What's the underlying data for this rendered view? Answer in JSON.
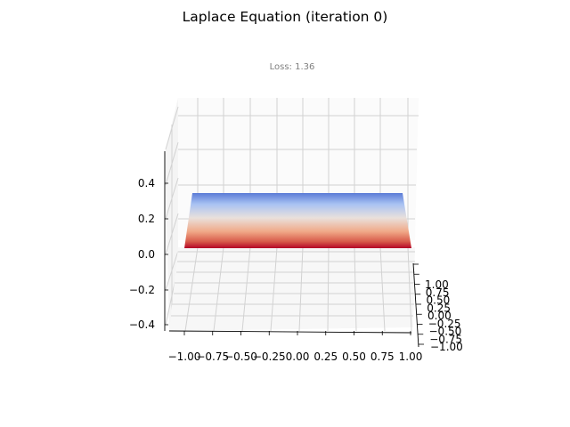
{
  "chart_data": {
    "type": "surface",
    "title": "Laplace Equation (iteration 0)",
    "subtitle": "Loss: 1.36",
    "x_ticks": [
      "−1.00",
      "−0.75",
      "−0.50",
      "−0.25",
      "0.00",
      "0.25",
      "0.50",
      "0.75",
      "1.00"
    ],
    "y_ticks": [
      "−1.00",
      "−0.75",
      "−0.50",
      "−0.25",
      "0.00",
      "0.25",
      "0.50",
      "0.75",
      "1.00"
    ],
    "z_ticks": [
      "−0.4",
      "−0.2",
      "0.0",
      "0.2",
      "0.4"
    ],
    "xlim": [
      -1,
      1
    ],
    "ylim": [
      -1,
      1
    ],
    "zlim": [
      -0.5,
      0.5
    ],
    "surface": {
      "description_values": "near-flat surface at u ≈ 0 across the domain",
      "z_value": 0.0,
      "colormap": "coolwarm",
      "colors": {
        "low": "#b40426",
        "mid": "#dddddd",
        "high": "#3b4cc0"
      }
    },
    "grid": true
  }
}
